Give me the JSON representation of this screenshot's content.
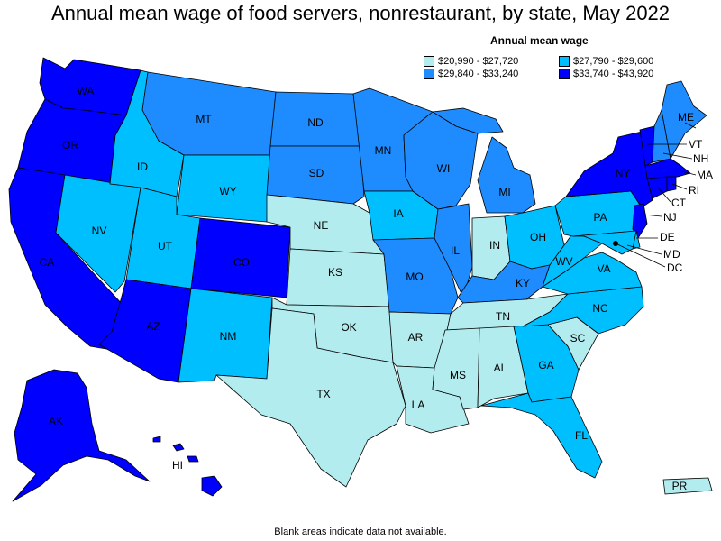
{
  "title": "Annual mean wage of food servers, nonrestaurant, by state, May 2022",
  "legend": {
    "title": "Annual mean wage",
    "bins": [
      {
        "label": "$20,990 - $27,720",
        "color": "#b3ecee"
      },
      {
        "label": "$27,790 - $29,600",
        "color": "#00bfff"
      },
      {
        "label": "$29,840 - $33,240",
        "color": "#1e8cff"
      },
      {
        "label": "$33,740 - $43,920",
        "color": "#0000ff"
      }
    ]
  },
  "footnote": "Blank areas indicate data not available.",
  "states": [
    {
      "abbr": "WA",
      "bin": 3
    },
    {
      "abbr": "OR",
      "bin": 3
    },
    {
      "abbr": "CA",
      "bin": 3
    },
    {
      "abbr": "AK",
      "bin": 3
    },
    {
      "abbr": "HI",
      "bin": 3
    },
    {
      "abbr": "NV",
      "bin": 1
    },
    {
      "abbr": "ID",
      "bin": 1
    },
    {
      "abbr": "MT",
      "bin": 2
    },
    {
      "abbr": "WY",
      "bin": 1
    },
    {
      "abbr": "UT",
      "bin": 1
    },
    {
      "abbr": "AZ",
      "bin": 3
    },
    {
      "abbr": "CO",
      "bin": 3
    },
    {
      "abbr": "NM",
      "bin": 1
    },
    {
      "abbr": "ND",
      "bin": 2
    },
    {
      "abbr": "SD",
      "bin": 2
    },
    {
      "abbr": "NE",
      "bin": 0
    },
    {
      "abbr": "KS",
      "bin": 0
    },
    {
      "abbr": "OK",
      "bin": 0
    },
    {
      "abbr": "TX",
      "bin": 0
    },
    {
      "abbr": "MN",
      "bin": 2
    },
    {
      "abbr": "IA",
      "bin": 1
    },
    {
      "abbr": "MO",
      "bin": 2
    },
    {
      "abbr": "AR",
      "bin": 0
    },
    {
      "abbr": "LA",
      "bin": 0
    },
    {
      "abbr": "WI",
      "bin": 2
    },
    {
      "abbr": "IL",
      "bin": 2
    },
    {
      "abbr": "MI",
      "bin": 2
    },
    {
      "abbr": "IN",
      "bin": 0
    },
    {
      "abbr": "OH",
      "bin": 1
    },
    {
      "abbr": "KY",
      "bin": 2
    },
    {
      "abbr": "TN",
      "bin": 0
    },
    {
      "abbr": "MS",
      "bin": 0
    },
    {
      "abbr": "AL",
      "bin": 0
    },
    {
      "abbr": "GA",
      "bin": 1
    },
    {
      "abbr": "FL",
      "bin": 1
    },
    {
      "abbr": "SC",
      "bin": 0
    },
    {
      "abbr": "NC",
      "bin": 1
    },
    {
      "abbr": "VA",
      "bin": 1
    },
    {
      "abbr": "WV",
      "bin": 1
    },
    {
      "abbr": "PA",
      "bin": 1
    },
    {
      "abbr": "NY",
      "bin": 3
    },
    {
      "abbr": "VT",
      "bin": 3
    },
    {
      "abbr": "NH",
      "bin": 2
    },
    {
      "abbr": "ME",
      "bin": 2
    },
    {
      "abbr": "MA",
      "bin": 3
    },
    {
      "abbr": "RI",
      "bin": 3
    },
    {
      "abbr": "CT",
      "bin": 3
    },
    {
      "abbr": "NJ",
      "bin": 3
    },
    {
      "abbr": "DE",
      "bin": 1
    },
    {
      "abbr": "MD",
      "bin": 1
    },
    {
      "abbr": "DC",
      "bin": 3
    },
    {
      "abbr": "PR",
      "bin": 0
    }
  ]
}
